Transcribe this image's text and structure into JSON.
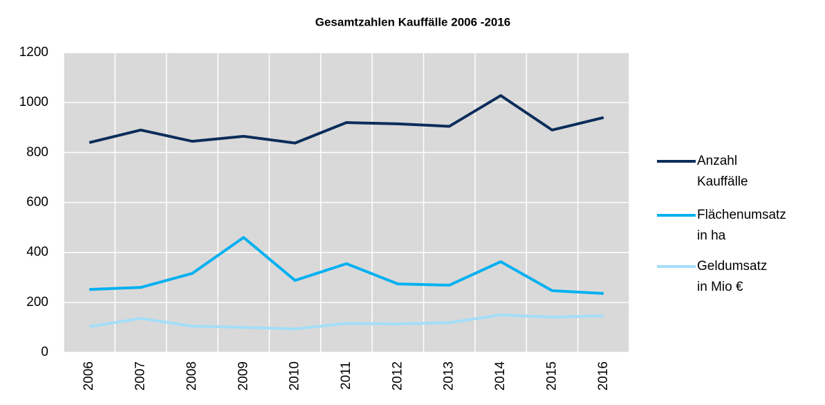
{
  "chart_data": {
    "type": "line",
    "title": "Gesamtzahlen Kauffälle 2006 -2016",
    "categories": [
      "2006",
      "2007",
      "2008",
      "2009",
      "2010",
      "2011",
      "2012",
      "2013",
      "2014",
      "2015",
      "2016"
    ],
    "series": [
      {
        "name": "Anzahl Kauffälle",
        "color": "#0b2d5a",
        "values": [
          840,
          890,
          845,
          865,
          838,
          920,
          915,
          905,
          1028,
          890,
          940
        ]
      },
      {
        "name": "Flächenumsatz in ha",
        "color": "#00b0f0",
        "values": [
          252,
          260,
          316,
          460,
          288,
          355,
          274,
          269,
          363,
          247,
          236
        ]
      },
      {
        "name": "Geldumsatz in Mio €",
        "color": "#a3def8",
        "values": [
          103,
          136,
          105,
          100,
          94,
          116,
          114,
          119,
          150,
          141,
          147
        ]
      }
    ],
    "ylim": [
      0,
      1200
    ],
    "yticks": [
      0,
      200,
      400,
      600,
      800,
      1000,
      1200
    ],
    "grid": true,
    "legend": "right"
  }
}
